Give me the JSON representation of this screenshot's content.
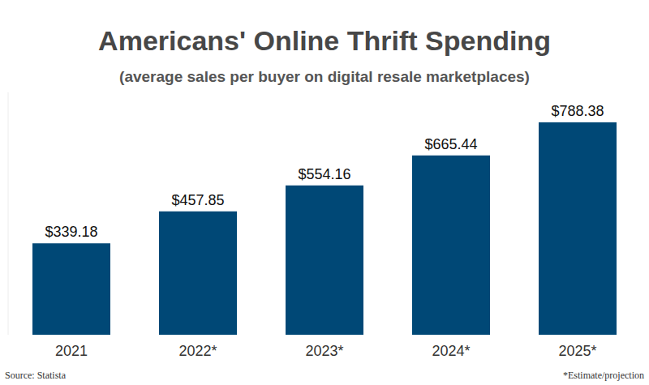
{
  "chart_data": {
    "type": "bar",
    "title": "Americans' Online Thrift Spending",
    "subtitle": "(average sales per buyer on digital resale marketplaces)",
    "categories": [
      "2021",
      "2022*",
      "2023*",
      "2024*",
      "2025*"
    ],
    "values": [
      339.18,
      457.85,
      554.16,
      665.44,
      788.38
    ],
    "value_labels": [
      "$339.18",
      "$457.85",
      "$554.16",
      "$665.44",
      "$788.38"
    ],
    "color": "#004876",
    "ylim": [
      0,
      900
    ],
    "grid": false,
    "data_labels": true,
    "tick_labels": "x",
    "source": "Source: Statista",
    "footnote": "*Estimate/projection"
  }
}
